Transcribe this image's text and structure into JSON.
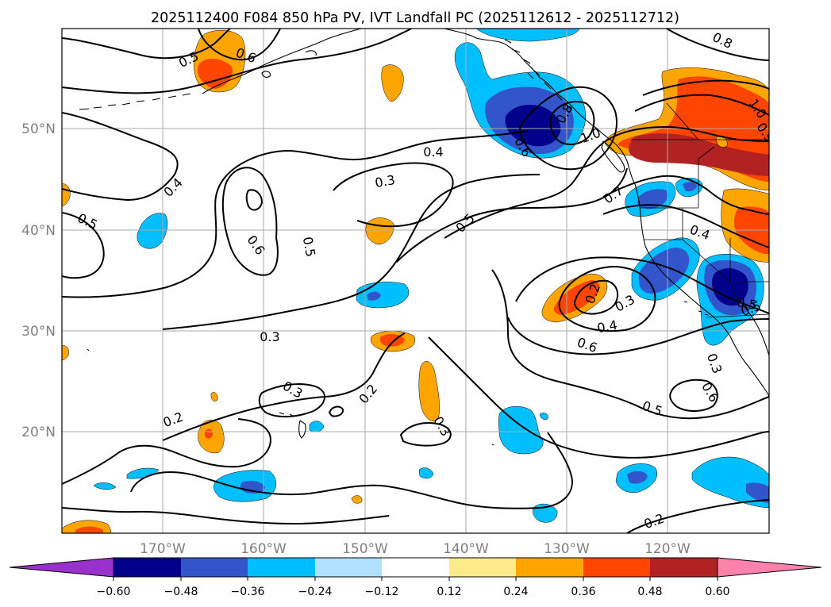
{
  "title": "2025112400 F084 850 hPa PV, IVT Landfall PC (2025112612 - 2025112712)",
  "map": {
    "lat_labels": [
      "50°N",
      "40°N",
      "30°N",
      "20°N"
    ],
    "lon_labels": [
      "170°W",
      "160°W",
      "150°W",
      "140°W",
      "130°W",
      "120°W"
    ]
  },
  "contour_labels": [
    "0.5",
    "0.6",
    "0.8",
    "1.0",
    "0.9",
    "0.4",
    "0.5",
    "0.6",
    "0.5",
    "0.3",
    "0.4",
    "0.5",
    "0.6",
    "0.8",
    "1.0",
    "0.7",
    "0.4",
    "0.3",
    "0.2",
    "0.3",
    "0.4",
    "0.6",
    "0.5",
    "0.3",
    "0.3",
    "0.2",
    "0.2",
    "0.3",
    "0.5",
    "0.6",
    "0.5",
    "0.2"
  ],
  "colorbar": {
    "ticks": [
      "−0.60",
      "−0.48",
      "−0.36",
      "−0.24",
      "−0.12",
      "0.12",
      "0.24",
      "0.36",
      "0.48",
      "0.60"
    ],
    "colors": [
      "#9932cc",
      "#00008b",
      "#3355cc",
      "#00bfff",
      "#b0e2ff",
      "#ffffff",
      "#ffeb8a",
      "#ffa500",
      "#ff4500",
      "#b22222",
      "#ff82ab"
    ]
  }
}
